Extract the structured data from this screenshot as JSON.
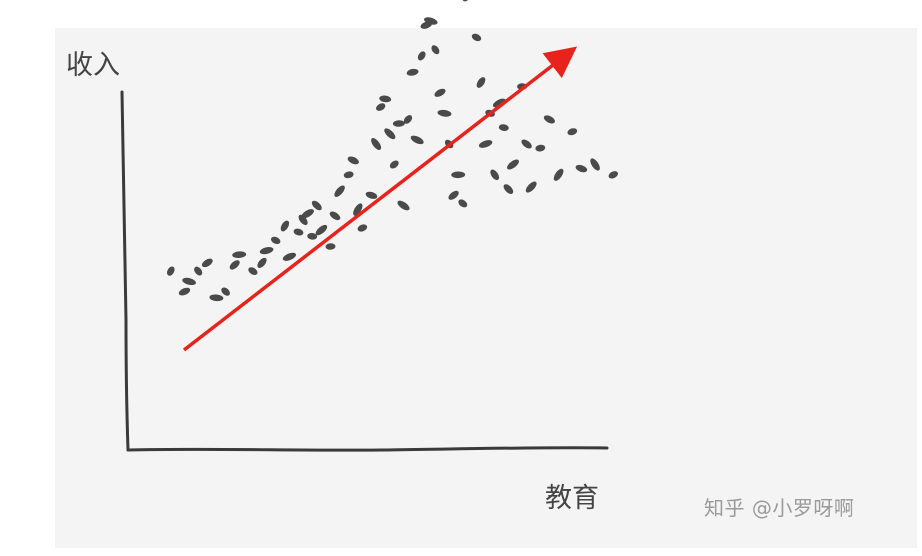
{
  "chart_data": {
    "type": "scatter",
    "xlabel": "教育",
    "ylabel": "收入",
    "trend_line": true,
    "points": [
      [
        0.05,
        0.58
      ],
      [
        0.08,
        0.48
      ],
      [
        0.09,
        0.53
      ],
      [
        0.11,
        0.58
      ],
      [
        0.13,
        0.62
      ],
      [
        0.15,
        0.45
      ],
      [
        0.17,
        0.48
      ],
      [
        0.19,
        0.61
      ],
      [
        0.2,
        0.66
      ],
      [
        0.23,
        0.58
      ],
      [
        0.25,
        0.62
      ],
      [
        0.26,
        0.68
      ],
      [
        0.28,
        0.73
      ],
      [
        0.3,
        0.8
      ],
      [
        0.31,
        0.65
      ],
      [
        0.33,
        0.77
      ],
      [
        0.34,
        0.83
      ],
      [
        0.35,
        0.86
      ],
      [
        0.36,
        0.75
      ],
      [
        0.37,
        0.9
      ],
      [
        0.38,
        0.78
      ],
      [
        0.4,
        0.7
      ],
      [
        0.41,
        0.85
      ],
      [
        0.42,
        0.97
      ],
      [
        0.44,
        1.05
      ],
      [
        0.45,
        1.12
      ],
      [
        0.46,
        0.88
      ],
      [
        0.47,
        0.79
      ],
      [
        0.49,
        0.95
      ],
      [
        0.5,
        1.2
      ],
      [
        0.51,
        1.38
      ],
      [
        0.52,
        1.42
      ],
      [
        0.53,
        1.25
      ],
      [
        0.54,
        1.1
      ],
      [
        0.55,
        1.3
      ],
      [
        0.56,
        0.9
      ],
      [
        0.57,
        1.32
      ],
      [
        0.58,
        1.55
      ],
      [
        0.59,
        1.22
      ],
      [
        0.6,
        1.63
      ],
      [
        0.61,
        1.78
      ],
      [
        0.62,
        1.8
      ],
      [
        0.63,
        1.66
      ],
      [
        0.64,
        1.45
      ],
      [
        0.65,
        1.35
      ],
      [
        0.66,
        1.2
      ],
      [
        0.67,
        0.95
      ],
      [
        0.68,
        1.05
      ],
      [
        0.69,
        0.91
      ],
      [
        0.7,
        1.92
      ],
      [
        0.71,
        1.97
      ],
      [
        0.72,
        1.72
      ],
      [
        0.73,
        1.5
      ],
      [
        0.74,
        1.2
      ],
      [
        0.75,
        1.35
      ],
      [
        0.76,
        1.05
      ],
      [
        0.77,
        1.4
      ],
      [
        0.78,
        1.28
      ],
      [
        0.79,
        0.98
      ],
      [
        0.8,
        1.1
      ],
      [
        0.82,
        1.48
      ],
      [
        0.83,
        1.2
      ],
      [
        0.84,
        0.99
      ],
      [
        0.86,
        1.18
      ],
      [
        0.88,
        1.32
      ],
      [
        0.9,
        1.05
      ],
      [
        0.93,
        1.26
      ],
      [
        0.95,
        1.08
      ],
      [
        0.98,
        1.1
      ],
      [
        1.02,
        1.05
      ]
    ]
  },
  "watermark": "知乎 @小罗呀啊"
}
